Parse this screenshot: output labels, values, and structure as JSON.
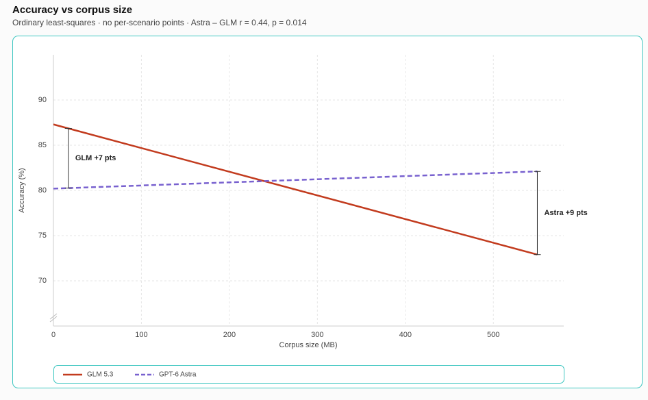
{
  "chart_data": {
    "type": "line",
    "title": "Accuracy vs corpus size",
    "subtitle": "Ordinary least-squares · no per-scenario points · Astra – GLM r = 0.44, p = 0.014",
    "x_label": "Corpus size (MB)",
    "y_label": "Accuracy (%)",
    "x": [
      0,
      550
    ],
    "series": [
      {
        "name": "GLM 5.3",
        "color": "#c23b1e",
        "values": [
          87.3,
          72.9
        ]
      },
      {
        "name": "GPT-6 Astra",
        "color": "#7861cf",
        "values": [
          80.2,
          82.1
        ],
        "dashed": true
      }
    ],
    "annotations": [
      {
        "text": "GLM +7 pts",
        "x": 17
      },
      {
        "text": "Astra +9 pts",
        "x": 550
      }
    ],
    "xlim": [
      0,
      580
    ],
    "xticks": [
      0,
      100,
      200,
      300,
      400,
      500
    ],
    "ylim": [
      65,
      95
    ],
    "yticks": [
      70,
      75,
      80,
      85,
      90
    ],
    "grid": true,
    "legend": "bottom"
  }
}
